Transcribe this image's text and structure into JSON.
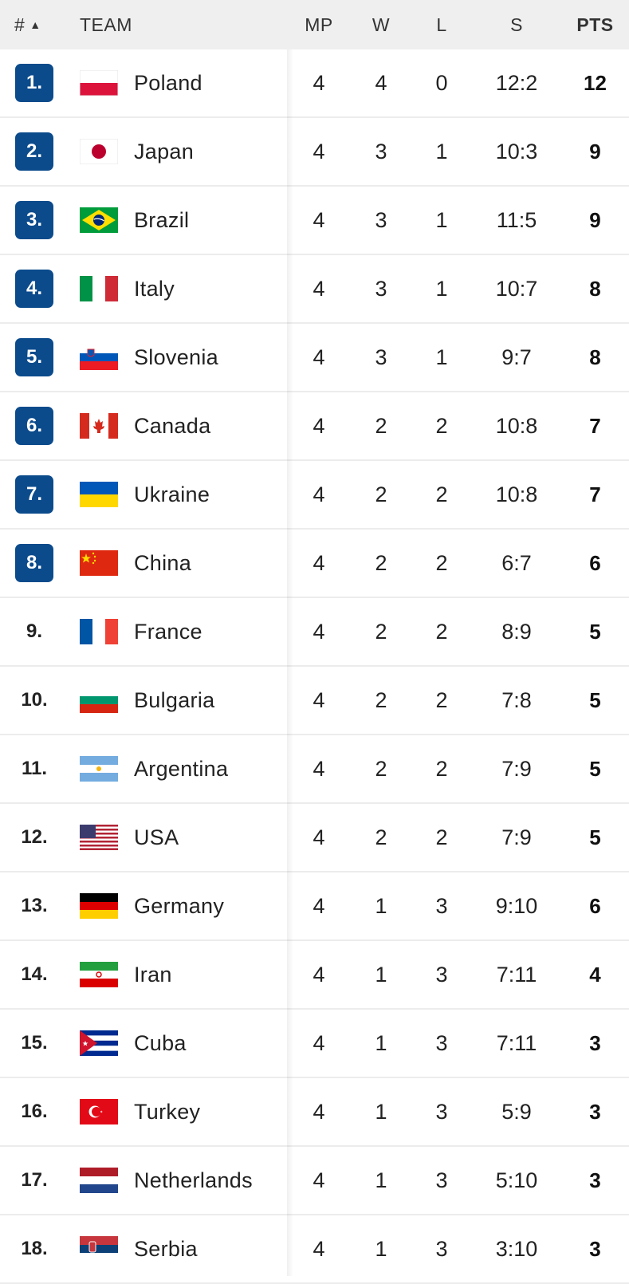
{
  "header": {
    "rank": "#",
    "team": "TEAM",
    "mp": "MP",
    "w": "W",
    "l": "L",
    "s": "S",
    "pts": "PTS"
  },
  "rows": [
    {
      "rank": "1.",
      "team": "Poland",
      "flag": "poland-flag",
      "mp": "4",
      "w": "4",
      "l": "0",
      "s": "12:2",
      "pts": "12",
      "highlight": true
    },
    {
      "rank": "2.",
      "team": "Japan",
      "flag": "japan-flag",
      "mp": "4",
      "w": "3",
      "l": "1",
      "s": "10:3",
      "pts": "9",
      "highlight": true
    },
    {
      "rank": "3.",
      "team": "Brazil",
      "flag": "brazil-flag",
      "mp": "4",
      "w": "3",
      "l": "1",
      "s": "11:5",
      "pts": "9",
      "highlight": true
    },
    {
      "rank": "4.",
      "team": "Italy",
      "flag": "italy-flag",
      "mp": "4",
      "w": "3",
      "l": "1",
      "s": "10:7",
      "pts": "8",
      "highlight": true
    },
    {
      "rank": "5.",
      "team": "Slovenia",
      "flag": "slovenia-flag",
      "mp": "4",
      "w": "3",
      "l": "1",
      "s": "9:7",
      "pts": "8",
      "highlight": true
    },
    {
      "rank": "6.",
      "team": "Canada",
      "flag": "canada-flag",
      "mp": "4",
      "w": "2",
      "l": "2",
      "s": "10:8",
      "pts": "7",
      "highlight": true
    },
    {
      "rank": "7.",
      "team": "Ukraine",
      "flag": "ukraine-flag",
      "mp": "4",
      "w": "2",
      "l": "2",
      "s": "10:8",
      "pts": "7",
      "highlight": true
    },
    {
      "rank": "8.",
      "team": "China",
      "flag": "china-flag",
      "mp": "4",
      "w": "2",
      "l": "2",
      "s": "6:7",
      "pts": "6",
      "highlight": true
    },
    {
      "rank": "9.",
      "team": "France",
      "flag": "france-flag",
      "mp": "4",
      "w": "2",
      "l": "2",
      "s": "8:9",
      "pts": "5",
      "highlight": false
    },
    {
      "rank": "10.",
      "team": "Bulgaria",
      "flag": "bulgaria-flag",
      "mp": "4",
      "w": "2",
      "l": "2",
      "s": "7:8",
      "pts": "5",
      "highlight": false
    },
    {
      "rank": "11.",
      "team": "Argentina",
      "flag": "argentina-flag",
      "mp": "4",
      "w": "2",
      "l": "2",
      "s": "7:9",
      "pts": "5",
      "highlight": false
    },
    {
      "rank": "12.",
      "team": "USA",
      "flag": "usa-flag",
      "mp": "4",
      "w": "2",
      "l": "2",
      "s": "7:9",
      "pts": "5",
      "highlight": false
    },
    {
      "rank": "13.",
      "team": "Germany",
      "flag": "germany-flag",
      "mp": "4",
      "w": "1",
      "l": "3",
      "s": "9:10",
      "pts": "6",
      "highlight": false
    },
    {
      "rank": "14.",
      "team": "Iran",
      "flag": "iran-flag",
      "mp": "4",
      "w": "1",
      "l": "3",
      "s": "7:11",
      "pts": "4",
      "highlight": false
    },
    {
      "rank": "15.",
      "team": "Cuba",
      "flag": "cuba-flag",
      "mp": "4",
      "w": "1",
      "l": "3",
      "s": "7:11",
      "pts": "3",
      "highlight": false
    },
    {
      "rank": "16.",
      "team": "Turkey",
      "flag": "turkey-flag",
      "mp": "4",
      "w": "1",
      "l": "3",
      "s": "5:9",
      "pts": "3",
      "highlight": false
    },
    {
      "rank": "17.",
      "team": "Netherlands",
      "flag": "netherlands-flag",
      "mp": "4",
      "w": "1",
      "l": "3",
      "s": "5:10",
      "pts": "3",
      "highlight": false
    },
    {
      "rank": "18.",
      "team": "Serbia",
      "flag": "serbia-flag",
      "mp": "4",
      "w": "1",
      "l": "3",
      "s": "3:10",
      "pts": "3",
      "highlight": false
    }
  ],
  "colors": {
    "badge": "#0b4b8c",
    "header_bg": "#efefef"
  }
}
